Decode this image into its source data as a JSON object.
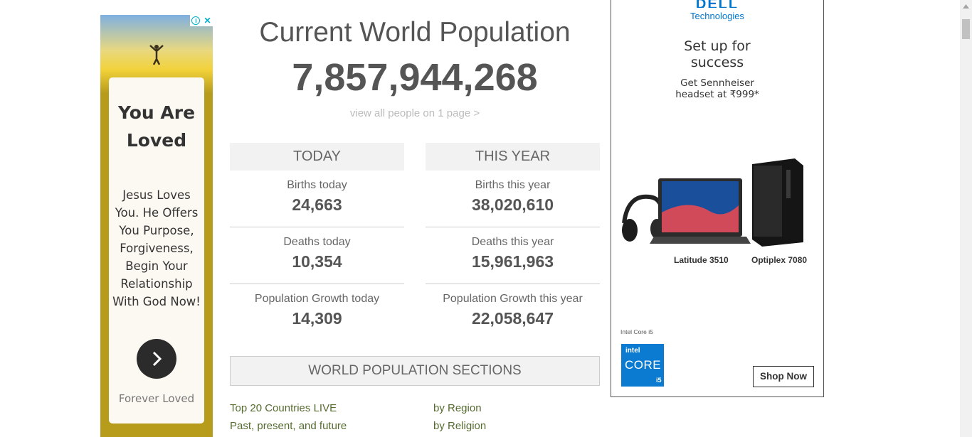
{
  "left_ad": {
    "headline_line1": "You Are",
    "headline_line2": "Loved",
    "body_lines": [
      "Jesus Loves",
      "You. He Offers",
      "You Purpose,",
      "Forgiveness,",
      "Begin Your",
      "Relationship",
      "With God Now!"
    ],
    "footer": "Forever Loved",
    "adchoices_icon": "info-icon",
    "close_icon": "close-icon"
  },
  "main": {
    "title": "Current World Population",
    "population": "7,857,944,268",
    "view_all_link": "view all people on 1 page >",
    "today": {
      "header": "TODAY",
      "stats": [
        {
          "label": "Births today",
          "value": "24,663"
        },
        {
          "label": "Deaths today",
          "value": "10,354"
        },
        {
          "label": "Population Growth today",
          "value": "14,309"
        }
      ]
    },
    "this_year": {
      "header": "THIS YEAR",
      "stats": [
        {
          "label": "Births this year",
          "value": "38,020,610"
        },
        {
          "label": "Deaths this year",
          "value": "15,961,963"
        },
        {
          "label": "Population Growth this year",
          "value": "22,058,647"
        }
      ]
    },
    "sections_header": "WORLD POPULATION SECTIONS",
    "section_links": {
      "top20": "Top 20 Countries LIVE",
      "past": "Past, present, and future",
      "region": "by Region",
      "religion": "by Religion"
    }
  },
  "right_ad": {
    "brand": "DELL",
    "brand_sub": "Technologies",
    "headline_line1": "Set up for",
    "headline_line2": "success",
    "offer_line1": "Get Sennheiser",
    "offer_line2": "headset at ₹999*",
    "product1": "Latitude 3510",
    "product2": "Optiplex 7080",
    "intel_small": "Intel Core i5",
    "intel_badge_top": "intel",
    "intel_badge_mid": "CORE",
    "intel_badge_tier": "i5",
    "cta": "Shop Now"
  },
  "colors": {
    "link_green": "#556b2f",
    "dell_blue": "#0076ce",
    "left_ad_gold": "#b79c1c"
  }
}
